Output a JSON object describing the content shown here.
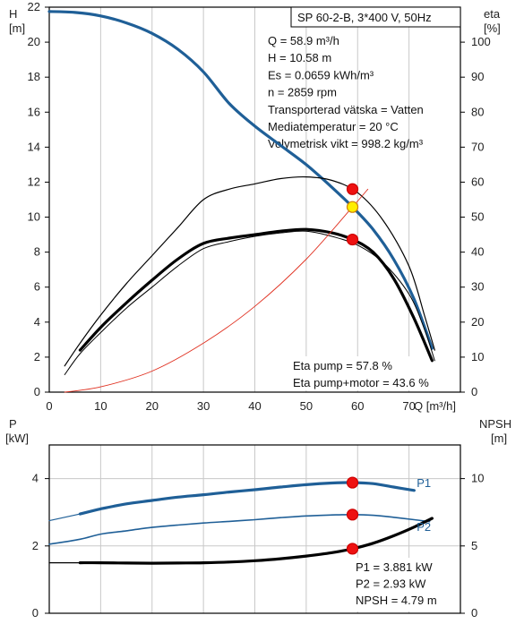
{
  "colors": {
    "blue": "#1f5f97",
    "black": "#000000",
    "red_curve": "#e03020",
    "point_red": "#ee1111",
    "point_yellow": "#ffee00",
    "grid": "#c8c8c8"
  },
  "chart_data": [
    {
      "id": "top",
      "type": "line",
      "title": "SP 60-2-B, 3*400 V, 50Hz",
      "xlabel": "Q [m³/h]",
      "ylabel_left": [
        "H",
        "[m]"
      ],
      "ylabel_right": [
        "eta",
        "[%]"
      ],
      "xlim": [
        0,
        80
      ],
      "xticks": [
        0,
        10,
        20,
        30,
        40,
        50,
        60,
        70
      ],
      "ylim_left": [
        0,
        22
      ],
      "yticks_left": [
        0,
        2,
        4,
        6,
        8,
        10,
        12,
        14,
        16,
        18,
        20,
        22
      ],
      "ylim_right": [
        0,
        110
      ],
      "yticks_right": [
        0,
        10,
        20,
        30,
        40,
        50,
        60,
        70,
        80,
        90,
        100
      ],
      "info_lines": [
        "Q = 58.9 m³/h",
        "H = 10.58 m",
        "Es = 0.0659 kWh/m³",
        "n = 2859 rpm",
        "Transporterad vätska = Vatten",
        "Mediatemperatur = 20 °C",
        "Volymetrisk vikt = 998.2 kg/m³"
      ],
      "eta_lines": [
        "Eta pump = 57.8 %",
        "Eta pump+motor = 43.6 %"
      ],
      "series": [
        {
          "axis": "left",
          "color": "blue",
          "width": 3.2,
          "style": "solid",
          "points": [
            [
              0,
              21.75
            ],
            [
              5,
              21.7
            ],
            [
              10,
              21.5
            ],
            [
              15,
              21.1
            ],
            [
              20,
              20.5
            ],
            [
              25,
              19.6
            ],
            [
              30,
              18.3
            ],
            [
              35,
              16.5
            ],
            [
              40,
              15.2
            ],
            [
              45,
              14.1
            ],
            [
              50,
              13.0
            ],
            [
              55,
              11.7
            ],
            [
              59,
              10.58
            ],
            [
              63,
              9.3
            ],
            [
              67,
              7.6
            ],
            [
              71,
              5.3
            ],
            [
              74.5,
              2.5
            ]
          ]
        },
        {
          "axis": "left",
          "color": "blue",
          "width": 1.2,
          "style": "solid",
          "points": [
            [
              0,
              21.75
            ],
            [
              6,
              21.7
            ]
          ]
        },
        {
          "axis": "right",
          "color": "black",
          "width": 1.2,
          "style": "solid",
          "points": [
            [
              3,
              7.5
            ],
            [
              6,
              14
            ],
            [
              10,
              22
            ],
            [
              15,
              31
            ],
            [
              20,
              39
            ],
            [
              25,
              47
            ],
            [
              30,
              55
            ],
            [
              35,
              58
            ],
            [
              40,
              59.5
            ],
            [
              45,
              61
            ],
            [
              50,
              61.5
            ],
            [
              55,
              60.5
            ],
            [
              60,
              57
            ],
            [
              65,
              49
            ],
            [
              70,
              36
            ],
            [
              73,
              22
            ],
            [
              75,
              12
            ]
          ]
        },
        {
          "axis": "right",
          "color": "black",
          "width": 3.2,
          "style": "solid",
          "points": [
            [
              6,
              12
            ],
            [
              10,
              18.5
            ],
            [
              15,
              25.5
            ],
            [
              20,
              32
            ],
            [
              25,
              38
            ],
            [
              30,
              42.5
            ],
            [
              35,
              44
            ],
            [
              40,
              45
            ],
            [
              45,
              46
            ],
            [
              50,
              46.5
            ],
            [
              55,
              45.5
            ],
            [
              59,
              43.6
            ],
            [
              63,
              40
            ],
            [
              67,
              32.5
            ],
            [
              71,
              21
            ],
            [
              74.5,
              9
            ]
          ]
        },
        {
          "axis": "right",
          "color": "black",
          "width": 1.0,
          "style": "solid",
          "points": [
            [
              3,
              5
            ],
            [
              6,
              11
            ],
            [
              10,
              17
            ],
            [
              15,
              24
            ],
            [
              20,
              30
            ],
            [
              25,
              36
            ],
            [
              30,
              41
            ],
            [
              35,
              43
            ],
            [
              40,
              44.5
            ],
            [
              45,
              45.5
            ],
            [
              50,
              46
            ],
            [
              55,
              44.5
            ],
            [
              60,
              42
            ],
            [
              65,
              37
            ],
            [
              70,
              28
            ],
            [
              73,
              18
            ],
            [
              75,
              9
            ]
          ]
        },
        {
          "axis": "left",
          "color": "red_curve",
          "width": 0.9,
          "style": "solid",
          "points": [
            [
              3,
              0
            ],
            [
              10,
              0.3
            ],
            [
              20,
              1.2
            ],
            [
              30,
              2.8
            ],
            [
              40,
              4.9
            ],
            [
              50,
              7.6
            ],
            [
              59,
              10.58
            ],
            [
              62,
              11.6
            ]
          ]
        }
      ],
      "markers": [
        {
          "axis": "left",
          "x": 59,
          "y": 11.6,
          "color": "point_red",
          "r": 6
        },
        {
          "axis": "left",
          "x": 59,
          "y": 10.58,
          "color": "point_yellow",
          "r": 6
        },
        {
          "axis": "right",
          "x": 59,
          "y": 43.6,
          "color": "point_red",
          "r": 6
        }
      ]
    },
    {
      "id": "bottom",
      "type": "line",
      "xlabel": "",
      "ylabel_left": [
        "P",
        "[kW]"
      ],
      "ylabel_right": [
        "NPSH",
        "[m]"
      ],
      "xlim": [
        0,
        80
      ],
      "ylim_left": [
        0,
        5
      ],
      "yticks_left": [
        0,
        2,
        4
      ],
      "ylim_right": [
        0,
        12.5
      ],
      "yticks_right": [
        0,
        5,
        10
      ],
      "info_lines": [
        "P1 = 3.881 kW",
        "P2 = 2.93 kW",
        "NPSH = 4.79 m"
      ],
      "curve_labels": [
        {
          "text": "P1",
          "axis": "left",
          "x": 71.5,
          "y": 3.85
        },
        {
          "text": "P2",
          "axis": "left",
          "x": 71.5,
          "y": 2.55
        }
      ],
      "series": [
        {
          "axis": "left",
          "color": "blue",
          "width": 3.2,
          "style": "solid",
          "points": [
            [
              6,
              2.95
            ],
            [
              10,
              3.1
            ],
            [
              15,
              3.25
            ],
            [
              20,
              3.35
            ],
            [
              25,
              3.45
            ],
            [
              30,
              3.52
            ],
            [
              35,
              3.6
            ],
            [
              40,
              3.67
            ],
            [
              45,
              3.75
            ],
            [
              50,
              3.82
            ],
            [
              55,
              3.87
            ],
            [
              59,
              3.881
            ],
            [
              63,
              3.85
            ],
            [
              67,
              3.75
            ],
            [
              71,
              3.65
            ]
          ]
        },
        {
          "axis": "left",
          "color": "blue",
          "width": 1.2,
          "style": "solid",
          "points": [
            [
              0,
              2.75
            ],
            [
              6,
              2.95
            ]
          ]
        },
        {
          "axis": "left",
          "color": "blue",
          "width": 1.6,
          "style": "solid",
          "points": [
            [
              0,
              2.05
            ],
            [
              6,
              2.2
            ],
            [
              10,
              2.35
            ],
            [
              15,
              2.45
            ],
            [
              20,
              2.55
            ],
            [
              25,
              2.62
            ],
            [
              30,
              2.68
            ],
            [
              35,
              2.73
            ],
            [
              40,
              2.78
            ],
            [
              45,
              2.84
            ],
            [
              50,
              2.89
            ],
            [
              55,
              2.92
            ],
            [
              59,
              2.93
            ],
            [
              63,
              2.91
            ],
            [
              67,
              2.85
            ],
            [
              71,
              2.78
            ],
            [
              74,
              2.72
            ]
          ]
        },
        {
          "axis": "right",
          "color": "black",
          "width": 3.2,
          "style": "solid",
          "points": [
            [
              6,
              3.75
            ],
            [
              10,
              3.75
            ],
            [
              15,
              3.73
            ],
            [
              20,
              3.72
            ],
            [
              25,
              3.73
            ],
            [
              30,
              3.75
            ],
            [
              35,
              3.8
            ],
            [
              40,
              3.9
            ],
            [
              45,
              4.05
            ],
            [
              50,
              4.25
            ],
            [
              55,
              4.5
            ],
            [
              59,
              4.79
            ],
            [
              63,
              5.2
            ],
            [
              67,
              5.75
            ],
            [
              71,
              6.4
            ],
            [
              74.5,
              7.05
            ]
          ]
        },
        {
          "axis": "right",
          "color": "black",
          "width": 1.2,
          "style": "solid",
          "points": [
            [
              0,
              3.75
            ],
            [
              6,
              3.75
            ]
          ]
        }
      ],
      "markers": [
        {
          "axis": "left",
          "x": 59,
          "y": 3.881,
          "color": "point_red",
          "r": 6
        },
        {
          "axis": "left",
          "x": 59,
          "y": 2.93,
          "color": "point_red",
          "r": 6
        },
        {
          "axis": "right",
          "x": 59,
          "y": 4.79,
          "color": "point_red",
          "r": 6
        }
      ]
    }
  ]
}
